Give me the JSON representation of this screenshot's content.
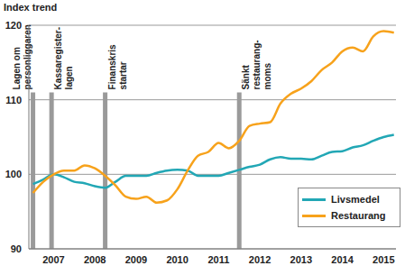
{
  "chart_data": {
    "type": "line",
    "y_label": "Index trend",
    "x": [
      2007.0,
      2007.25,
      2007.5,
      2007.75,
      2008.0,
      2008.25,
      2008.5,
      2008.75,
      2009.0,
      2009.25,
      2009.5,
      2009.75,
      2010.0,
      2010.25,
      2010.5,
      2010.75,
      2011.0,
      2011.25,
      2011.5,
      2011.75,
      2012.0,
      2012.25,
      2012.5,
      2012.75,
      2013.0,
      2013.25,
      2013.5,
      2013.75,
      2014.0,
      2014.25,
      2014.5,
      2014.75,
      2015.0,
      2015.25,
      2015.5,
      2015.75
    ],
    "series": [
      {
        "name": "Livsmedel",
        "color": "#22a7b5",
        "values": [
          98.7,
          99.3,
          100,
          99.6,
          99,
          98.8,
          98.4,
          98.2,
          99,
          99.8,
          99.8,
          99.8,
          100.2,
          100.5,
          100.6,
          100.5,
          99.8,
          99.8,
          99.8,
          100.2,
          100.6,
          101,
          101.3,
          102,
          102.3,
          102.1,
          102.1,
          102,
          102.5,
          103,
          103.1,
          103.6,
          103.9,
          104.5,
          105,
          105.3
        ]
      },
      {
        "name": "Restaurang",
        "color": "#f7a21b",
        "values": [
          97.5,
          99,
          100,
          100.5,
          100.5,
          101.2,
          100.8,
          99.8,
          98.5,
          97,
          96.7,
          97,
          96.2,
          96.5,
          98,
          100.5,
          102.5,
          103,
          104.2,
          103.5,
          104.5,
          106.5,
          106.8,
          107,
          109.5,
          110.8,
          111.5,
          112.5,
          114,
          115,
          116.5,
          117,
          116.5,
          118.5,
          119.2,
          119
        ]
      }
    ],
    "xlim": [
      2006.9,
      2015.8
    ],
    "xticks": [
      {
        "value": 2007.5,
        "label": "2007"
      },
      {
        "value": 2008.5,
        "label": "2008"
      },
      {
        "value": 2009.5,
        "label": "2009"
      },
      {
        "value": 2010.5,
        "label": "2010"
      },
      {
        "value": 2011.5,
        "label": "2011"
      },
      {
        "value": 2012.5,
        "label": "2012"
      },
      {
        "value": 2013.5,
        "label": "2013"
      },
      {
        "value": 2014.5,
        "label": "2014"
      },
      {
        "value": 2015.5,
        "label": "2015"
      }
    ],
    "ylim": [
      90,
      120
    ],
    "yticks": [
      90,
      100,
      110,
      120
    ],
    "grid": true,
    "legend": "lower right",
    "annotations": [
      {
        "x": 2007.0,
        "lines": [
          "Lagen om",
          "personliggaren"
        ]
      },
      {
        "x": 2007.45,
        "lines": [
          "Kassaregister-",
          "lagen"
        ]
      },
      {
        "x": 2008.75,
        "lines": [
          "Finanskris",
          "startar"
        ]
      },
      {
        "x": 2012.0,
        "lines": [
          "Sänkt",
          "restaurang-",
          "moms"
        ]
      }
    ]
  }
}
